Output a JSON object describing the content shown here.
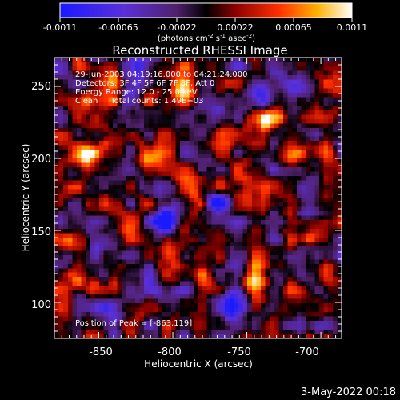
{
  "colorbar": {
    "tick_labels": [
      "-0.0011",
      "-0.00065",
      "-0.00022",
      "0.00022",
      "0.00065",
      "0.0011"
    ],
    "units_prefix": "(photons cm",
    "units_exp1": "-2",
    "units_mid": " s",
    "units_exp2": "-1",
    "units_mid2": " asec",
    "units_exp3": "-2",
    "units_suffix": ")"
  },
  "chart_data": {
    "type": "heatmap",
    "title": "Reconstructed RHESSI Image",
    "xlabel": "Heliocentric X (arcsec)",
    "ylabel": "Heliocentric Y (arcsec)",
    "xlim": [
      -880,
      -686
    ],
    "ylim": [
      75,
      270
    ],
    "xticks": [
      -850,
      -800,
      -750,
      -700
    ],
    "yticks": [
      100,
      150,
      200,
      250
    ],
    "clim": [
      -0.0011,
      0.0011
    ],
    "colormap": "rhessi-blue-red-yellow-white",
    "peak": [
      -863,
      119
    ],
    "hotspots": [
      {
        "x": -865,
        "y": 117,
        "value": 0.0011
      },
      {
        "x": -768,
        "y": 110,
        "value": 0.0008
      },
      {
        "x": -860,
        "y": 200,
        "value": 0.00085
      },
      {
        "x": -818,
        "y": 200,
        "value": 0.0009
      },
      {
        "x": -735,
        "y": 228,
        "value": 0.00075
      },
      {
        "x": -718,
        "y": 200,
        "value": 0.0007
      },
      {
        "x": -760,
        "y": 220,
        "value": 0.0006
      },
      {
        "x": -745,
        "y": 115,
        "value": 0.0009
      },
      {
        "x": -800,
        "y": 135,
        "value": 0.0006
      },
      {
        "x": -795,
        "y": 250,
        "value": 0.0005
      },
      {
        "x": -850,
        "y": 255,
        "value": 0.0006
      },
      {
        "x": -705,
        "y": 150,
        "value": 0.0006
      },
      {
        "x": -840,
        "y": 150,
        "value": 0.0004
      },
      {
        "x": -782,
        "y": 175,
        "value": 0.0005
      }
    ],
    "coldspots": [
      {
        "x": -820,
        "y": 265,
        "value": -0.0009
      },
      {
        "x": -805,
        "y": 160,
        "value": -0.001
      },
      {
        "x": -740,
        "y": 240,
        "value": -0.0009
      },
      {
        "x": -772,
        "y": 170,
        "value": -0.0008
      },
      {
        "x": -760,
        "y": 98,
        "value": -0.0008
      },
      {
        "x": -843,
        "y": 100,
        "value": -0.0006
      },
      {
        "x": -710,
        "y": 245,
        "value": -0.0006
      },
      {
        "x": -705,
        "y": 110,
        "value": -0.0005
      },
      {
        "x": -835,
        "y": 225,
        "value": -0.0005
      }
    ],
    "annotations": [
      "29-Jun-2003 04:19:16.000 to 04:21:24.000",
      "Detectors: 3F 4F 5F 6F 7F 8F, Att 0",
      "Energy Range: 12.0 - 25.0 keV",
      "Clean     Total counts: 1.49E+03",
      "Position of Peak = [-863,119]"
    ]
  },
  "footer": {
    "date": "3-May-2022 00:18"
  }
}
